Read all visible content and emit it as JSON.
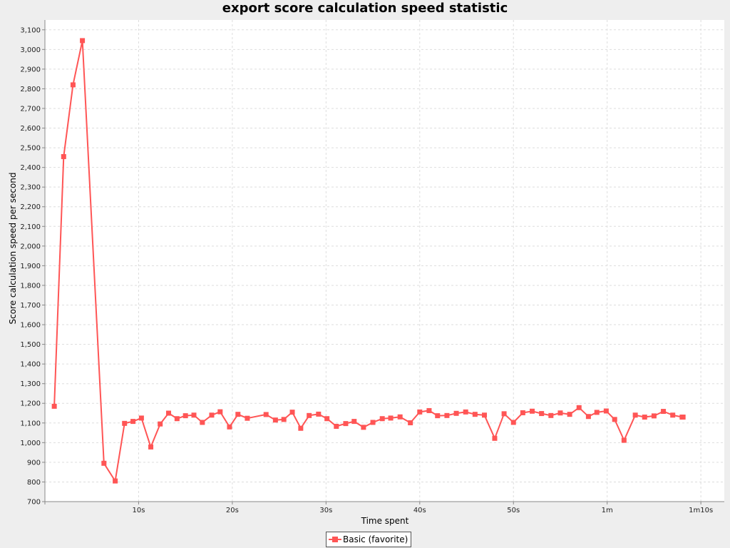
{
  "chart_data": {
    "type": "line",
    "title": "export score calculation speed statistic",
    "xlabel": "Time spent",
    "ylabel": "Score calculation speed per second",
    "xlim_seconds": [
      0,
      72.5
    ],
    "ylim": [
      700,
      3150
    ],
    "x_tick_values_seconds": [
      10,
      20,
      30,
      40,
      50,
      60,
      70
    ],
    "x_tick_labels": [
      "10s",
      "20s",
      "30s",
      "40s",
      "50s",
      "1m",
      "1m10s"
    ],
    "y_tick_values": [
      700,
      800,
      900,
      1000,
      1100,
      1200,
      1300,
      1400,
      1500,
      1600,
      1700,
      1800,
      1900,
      2000,
      2100,
      2200,
      2300,
      2400,
      2500,
      2600,
      2700,
      2800,
      2900,
      3000,
      3100
    ],
    "y_tick_labels": [
      "700",
      "800",
      "900",
      "1,000",
      "1,100",
      "1,200",
      "1,300",
      "1,400",
      "1,500",
      "1,600",
      "1,700",
      "1,800",
      "1,900",
      "2,000",
      "2,100",
      "2,200",
      "2,300",
      "2,400",
      "2,500",
      "2,600",
      "2,700",
      "2,800",
      "2,900",
      "3,000",
      "3,100"
    ],
    "grid": true,
    "legend_position": "bottom-center",
    "colors": {
      "series": "#ff5555",
      "plot_background": "#ffffff",
      "grid": "#dddddd",
      "page_background": "#eeeeee"
    },
    "series": [
      {
        "name": "Basic (favorite)",
        "x_seconds": [
          1.0,
          2.0,
          3.0,
          4.0,
          6.3,
          7.5,
          8.5,
          9.4,
          10.3,
          11.3,
          12.3,
          13.2,
          14.1,
          15.0,
          15.9,
          16.8,
          17.8,
          18.7,
          19.7,
          20.6,
          21.6,
          23.6,
          24.6,
          25.5,
          26.4,
          27.3,
          28.2,
          29.2,
          30.1,
          31.1,
          32.1,
          33.0,
          34.0,
          35.0,
          36.0,
          36.9,
          37.9,
          39.0,
          40.0,
          41.0,
          41.9,
          42.9,
          43.9,
          44.9,
          45.9,
          46.9,
          48.0,
          49.0,
          50.0,
          51.0,
          52.0,
          53.0,
          54.0,
          55.0,
          56.0,
          57.0,
          58.0,
          58.9,
          59.9,
          60.8,
          61.8,
          63.0,
          64.0,
          65.0,
          66.0,
          67.0,
          68.0,
          68.1
        ],
        "values": [
          1185,
          2455,
          2820,
          3045,
          895,
          805,
          1098,
          1108,
          1125,
          978,
          1095,
          1150,
          1122,
          1137,
          1140,
          1103,
          1140,
          1157,
          1080,
          1144,
          1124,
          1143,
          1115,
          1118,
          1155,
          1073,
          1138,
          1145,
          1122,
          1083,
          1097,
          1108,
          1078,
          1103,
          1122,
          1125,
          1131,
          1101,
          1156,
          1163,
          1137,
          1138,
          1149,
          1156,
          1144,
          1140,
          1022,
          1147,
          1103,
          1152,
          1160,
          1148,
          1138,
          1151,
          1144,
          1178,
          1133,
          1154,
          1161,
          1118,
          1012,
          1140,
          1130,
          1136,
          1159,
          1140,
          1130,
          1130
        ]
      }
    ]
  }
}
